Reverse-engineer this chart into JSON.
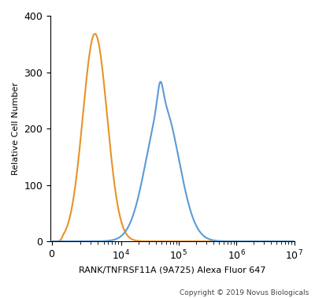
{
  "xlabel": "RANK/TNFRSF11A (9A725) Alexa Fluor 647",
  "ylabel": "Relative Cell Number",
  "copyright": "Copyright © 2019 Novus Biologicals",
  "ylim": [
    0,
    400
  ],
  "yticks": [
    0,
    100,
    200,
    300,
    400
  ],
  "orange_color": "#E8922A",
  "blue_color": "#5B9BD5",
  "bg_color": "#FFFFFF",
  "orange_mu_log10": 3.55,
  "orange_sigma_log10": 0.21,
  "orange_peak": 368,
  "blue_mu_log10": 4.72,
  "blue_sigma_log10": 0.28,
  "blue_peak": 283,
  "blue_spike_mu_log10": 4.68,
  "blue_spike_sigma_log10": 0.05,
  "blue_spike_amp": 50,
  "linthresh": 1000,
  "linscale": 0.18
}
